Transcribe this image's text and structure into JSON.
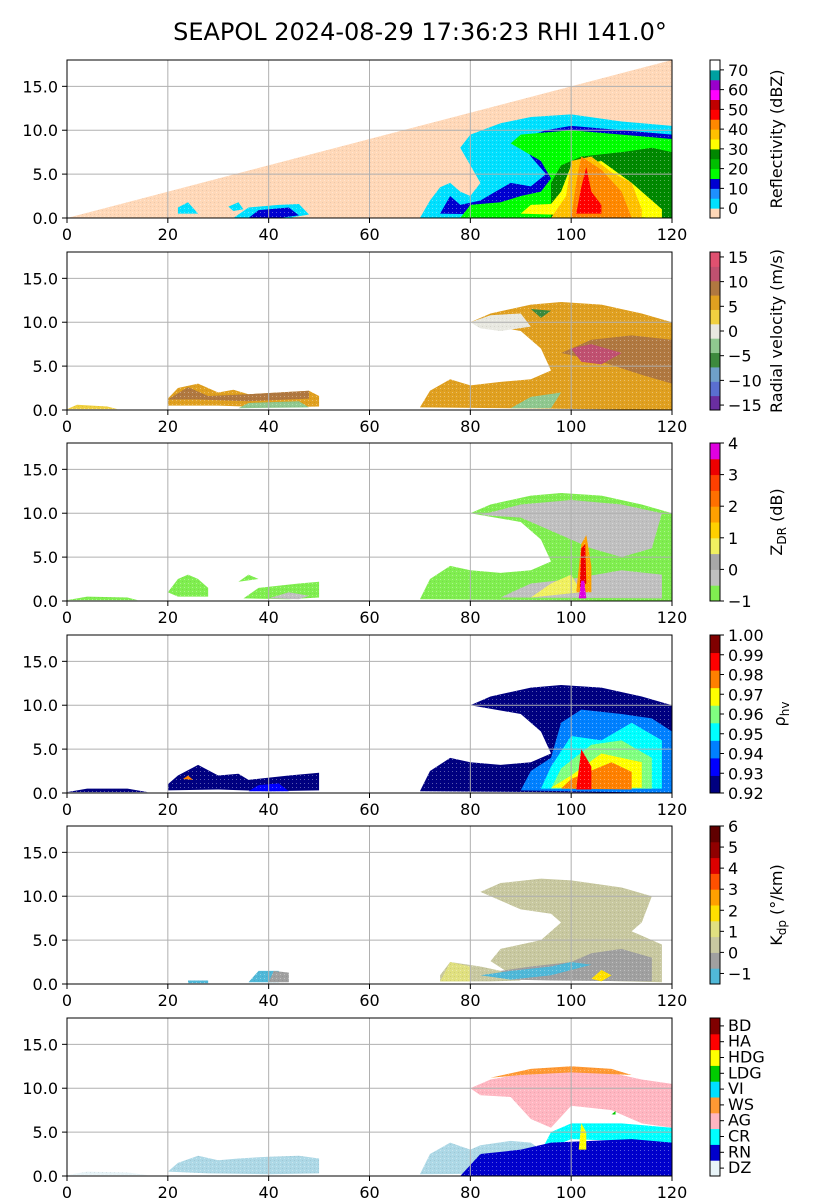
{
  "title": "SEAPOL 2024-08-29 17:36:23 RHI 141.0°",
  "chart_data": [
    {
      "type": "heatmap",
      "field": "reflectivity",
      "xlim": [
        0,
        120
      ],
      "ylim": [
        0,
        18
      ],
      "x_ticks": [
        "0",
        "20",
        "40",
        "60",
        "80",
        "100",
        "120"
      ],
      "y_ticks": [
        "0.0",
        "5.0",
        "10.0",
        "15.0"
      ],
      "grid": true,
      "colorbar": {
        "label": "Reflectivity (dBZ)",
        "range": [
          -5,
          75
        ],
        "ticks": [
          "0",
          "10",
          "20",
          "30",
          "40",
          "50",
          "60",
          "70"
        ],
        "tick_values": [
          0,
          10,
          20,
          30,
          40,
          50,
          60,
          70
        ],
        "colors": [
          "#ffd8b8",
          "#00e0ff",
          "#1e90ff",
          "#0000d0",
          "#00ff00",
          "#00c000",
          "#008800",
          "#ffff00",
          "#ffc000",
          "#ff8800",
          "#ff0000",
          "#c00000",
          "#ff00ff",
          "#9900cc",
          "#00a0a0",
          "#ffffff"
        ]
      }
    },
    {
      "type": "heatmap",
      "field": "radial_velocity",
      "xlim": [
        0,
        120
      ],
      "ylim": [
        0,
        18
      ],
      "x_ticks": [
        "0",
        "20",
        "40",
        "60",
        "80",
        "100",
        "120"
      ],
      "y_ticks": [
        "0.0",
        "5.0",
        "10.0",
        "15.0"
      ],
      "grid": true,
      "colorbar": {
        "label": "Radial velocity (m/s)",
        "range": [
          -16,
          16
        ],
        "ticks": [
          "−15",
          "−10",
          "−5",
          "0",
          "5",
          "10",
          "15"
        ],
        "tick_values": [
          -15,
          -10,
          -5,
          0,
          5,
          10,
          15
        ],
        "colors": [
          "#6a2ea0",
          "#5a6fd0",
          "#6fa0c8",
          "#3d8a3d",
          "#8fc88f",
          "#e8e8e0",
          "#f0d040",
          "#e0a020",
          "#b07840",
          "#c05070",
          "#e05070"
        ]
      }
    },
    {
      "type": "heatmap",
      "field": "differential_reflectivity",
      "xlim": [
        0,
        120
      ],
      "ylim": [
        0,
        18
      ],
      "x_ticks": [
        "0",
        "20",
        "40",
        "60",
        "80",
        "100",
        "120"
      ],
      "y_ticks": [
        "0.0",
        "5.0",
        "10.0",
        "15.0"
      ],
      "grid": true,
      "colorbar": {
        "label": "Z",
        "label_sub": "DR",
        "label_suffix": " (dB)",
        "range": [
          -1,
          4
        ],
        "ticks": [
          "−1",
          "0",
          "1",
          "2",
          "3",
          "4"
        ],
        "tick_values": [
          -1,
          0,
          1,
          2,
          3,
          4
        ],
        "colors": [
          "#80ee50",
          "#c0c0c0",
          "#a8a8a8",
          "#f0f060",
          "#ffd000",
          "#ffa000",
          "#ff7000",
          "#ff4000",
          "#ee0000",
          "#e000e0"
        ]
      }
    },
    {
      "type": "heatmap",
      "field": "correlation_coefficient",
      "xlim": [
        0,
        120
      ],
      "ylim": [
        0,
        18
      ],
      "x_ticks": [
        "0",
        "20",
        "40",
        "60",
        "80",
        "100",
        "120"
      ],
      "y_ticks": [
        "0.0",
        "5.0",
        "10.0",
        "15.0"
      ],
      "grid": true,
      "colorbar": {
        "label": "ρ",
        "label_sub": "hv",
        "label_suffix": "",
        "range": [
          0.92,
          1.0
        ],
        "ticks": [
          "0.92",
          "0.93",
          "0.94",
          "0.95",
          "0.96",
          "0.97",
          "0.98",
          "0.99",
          "1.00"
        ],
        "tick_values": [
          0.92,
          0.93,
          0.94,
          0.95,
          0.96,
          0.97,
          0.98,
          0.99,
          1.0
        ],
        "colors": [
          "#000080",
          "#0000ff",
          "#0080ff",
          "#00ffff",
          "#80ff80",
          "#ffff00",
          "#ff8000",
          "#ff0000",
          "#800000"
        ]
      }
    },
    {
      "type": "heatmap",
      "field": "specific_differential_phase",
      "xlim": [
        0,
        120
      ],
      "ylim": [
        0,
        18
      ],
      "x_ticks": [
        "0",
        "20",
        "40",
        "60",
        "80",
        "100",
        "120"
      ],
      "y_ticks": [
        "0.0",
        "5.0",
        "10.0",
        "15.0"
      ],
      "grid": true,
      "colorbar": {
        "label": "K",
        "label_sub": "dp",
        "label_suffix": " (°/km)",
        "range": [
          -1.5,
          6
        ],
        "ticks": [
          "−1",
          "0",
          "1",
          "2",
          "3",
          "4",
          "5",
          "6"
        ],
        "tick_values": [
          -1,
          0,
          1,
          2,
          3,
          4,
          5,
          6
        ],
        "colors": [
          "#50b8d8",
          "#a0a0a0",
          "#c8c8a0",
          "#e0e080",
          "#ffe000",
          "#ffa000",
          "#ff5000",
          "#dd0000",
          "#900000",
          "#600000"
        ]
      }
    },
    {
      "type": "heatmap",
      "field": "hydrometeor_class",
      "xlim": [
        0,
        120
      ],
      "ylim": [
        0,
        18
      ],
      "x_ticks": [
        "0",
        "20",
        "40",
        "60",
        "80",
        "100",
        "120"
      ],
      "y_ticks": [
        "0.0",
        "5.0",
        "10.0",
        "15.0"
      ],
      "grid": true,
      "colorbar": {
        "label": "",
        "categorical": true,
        "categories": [
          "DZ",
          "RN",
          "CR",
          "AG",
          "WS",
          "VI",
          "LDG",
          "HDG",
          "HA",
          "BD"
        ],
        "colors": [
          "#e8f4f8",
          "#0000cc",
          "#00ffff",
          "#ffb6c1",
          "#ff9933",
          "#00e0ff",
          "#00cc00",
          "#ffff00",
          "#ff0000",
          "#800000"
        ]
      }
    }
  ]
}
